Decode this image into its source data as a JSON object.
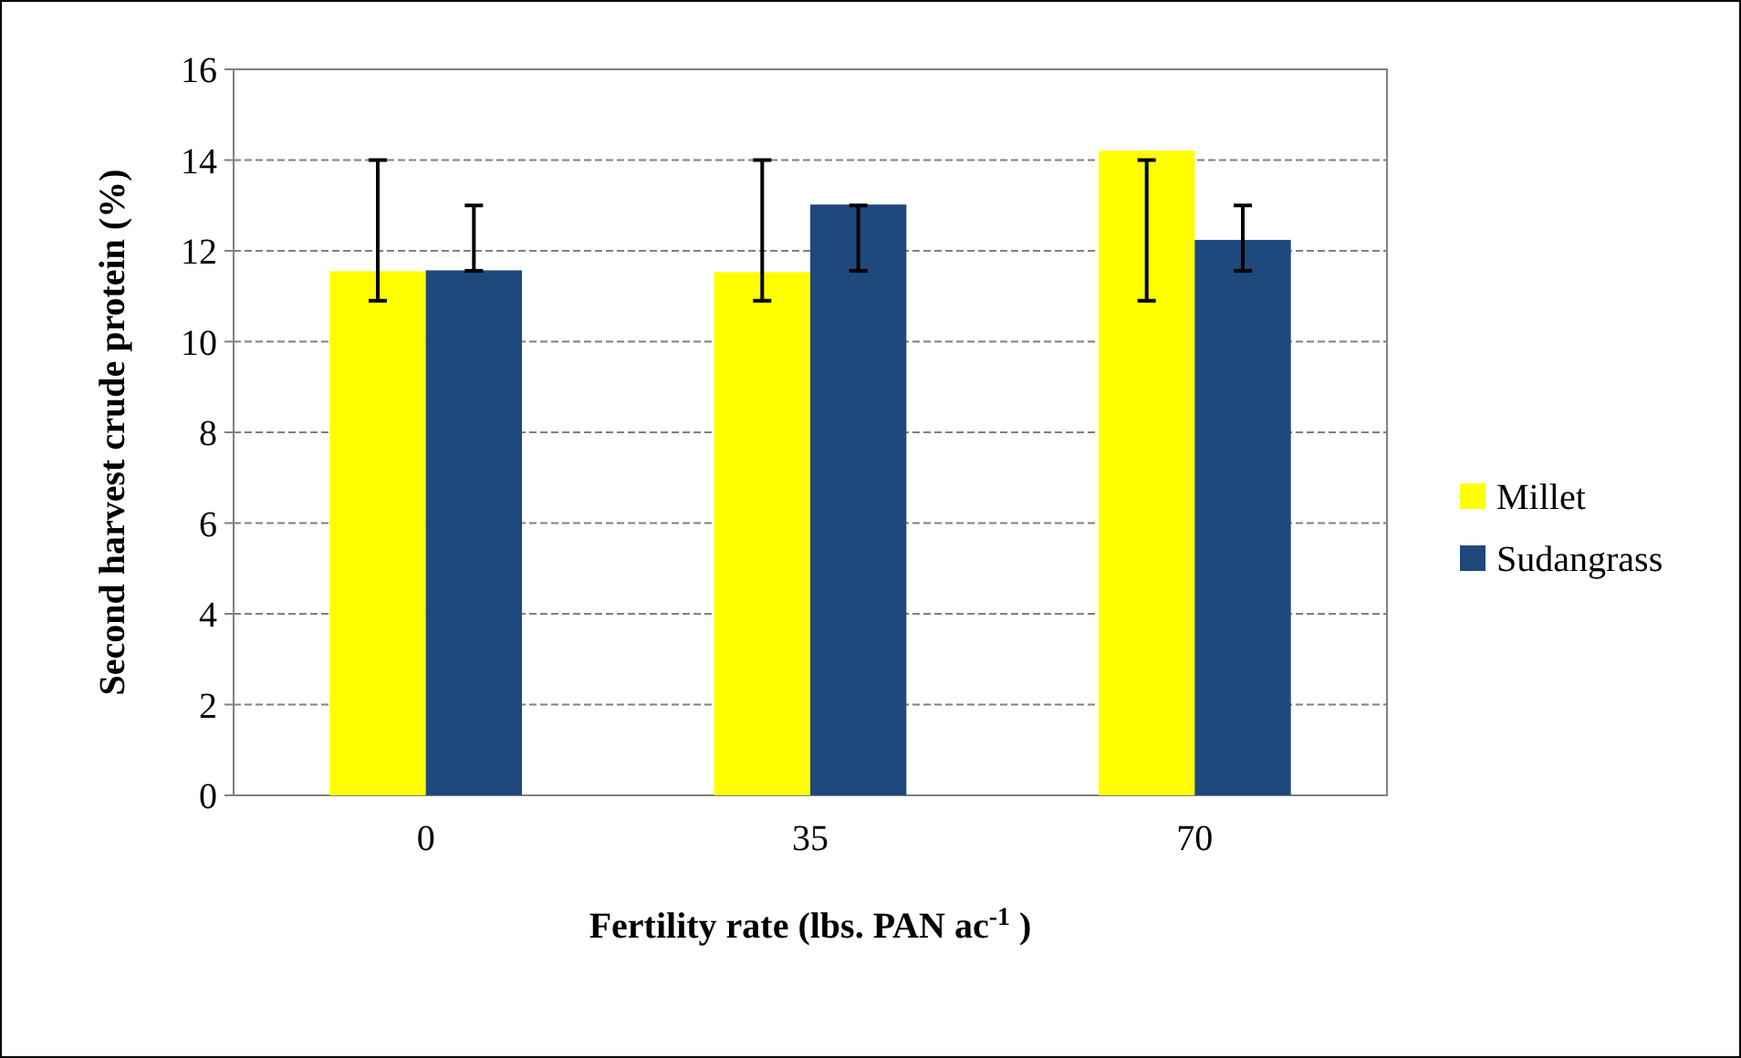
{
  "chart_data": {
    "type": "bar",
    "xlabel": "Fertility rate (lbs. PAN ac$^{-1}$ )",
    "ylabel": "Second harvest crude protein (%)",
    "categories": [
      "0",
      "35",
      "70"
    ],
    "series": [
      {
        "name": "Millet",
        "color": "#ffff00",
        "values": [
          11.55,
          11.53,
          14.21
        ],
        "errors": [
          [
            10.9,
            14.0
          ],
          [
            10.9,
            14.0
          ],
          [
            10.9,
            14.0
          ]
        ]
      },
      {
        "name": "Sudangrass",
        "color": "#1f497d",
        "values": [
          11.57,
          13.02,
          12.24
        ],
        "errors": [
          [
            11.56,
            13.0
          ],
          [
            11.56,
            13.0
          ],
          [
            11.56,
            13.0
          ]
        ]
      }
    ],
    "ylim": [
      0,
      16
    ],
    "yticks": [
      0,
      2,
      4,
      6,
      8,
      10,
      12,
      14,
      16
    ],
    "grid": "y",
    "legend": "right"
  }
}
